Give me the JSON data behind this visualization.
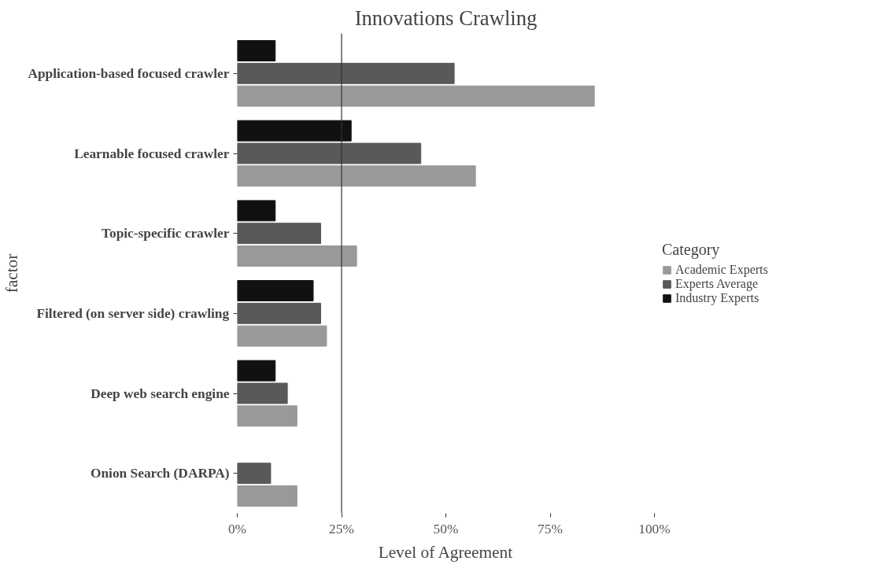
{
  "chart_data": {
    "type": "bar",
    "orientation": "horizontal",
    "title": "Innovations Crawling",
    "xlabel": "Level of Agreement",
    "ylabel": "factor",
    "legend_title": "Category",
    "categories": [
      "Application-based focused crawler",
      "Learnable focused crawler",
      "Topic-specific crawler",
      "Filtered (on server side) crawling",
      "Deep web search engine",
      "Onion Search (DARPA)"
    ],
    "series": [
      {
        "name": "Academic Experts",
        "color": "#999999",
        "values": [
          85.6,
          57.1,
          28.6,
          21.4,
          14.3,
          14.3
        ]
      },
      {
        "name": "Experts Average",
        "color": "#595959",
        "values": [
          52.0,
          44.0,
          20.0,
          20.0,
          12.0,
          8.0
        ]
      },
      {
        "name": "Industry Experts",
        "color": "#111111",
        "values": [
          9.1,
          27.3,
          9.1,
          18.2,
          9.1,
          null
        ]
      }
    ],
    "xlim": [
      0,
      100
    ],
    "xticks": [
      {
        "value": 0,
        "label": "0%"
      },
      {
        "value": 25,
        "label": "25%"
      },
      {
        "value": 50,
        "label": "50%"
      },
      {
        "value": 75,
        "label": "75%"
      },
      {
        "value": 100,
        "label": "100%"
      }
    ],
    "ref_lines": [
      {
        "axis": "x",
        "value": 25,
        "color": "#333333"
      }
    ],
    "grid": false,
    "legend": "right"
  }
}
